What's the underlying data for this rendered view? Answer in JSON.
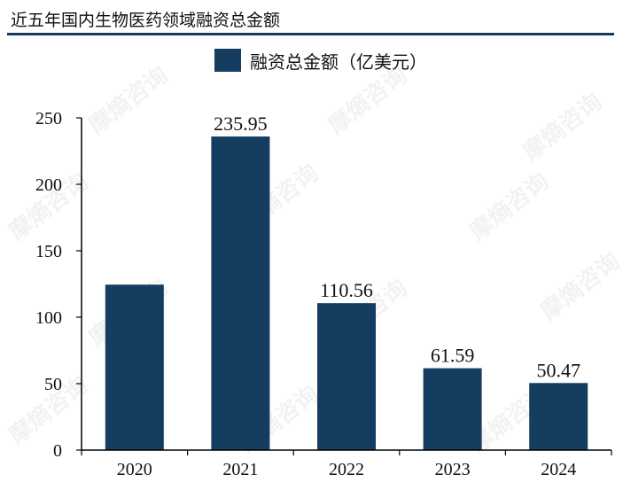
{
  "title": "近五年国内生物医药领域融资总金额",
  "watermark_text": "摩熵咨询",
  "colors": {
    "bar": "#143d5f",
    "rule": "#1b3a5c",
    "axis": "#000000",
    "text": "#111111"
  },
  "chart_data": {
    "type": "bar",
    "title": "近五年国内生物医药领域融资总金额",
    "categories": [
      "2020",
      "2021",
      "2022",
      "2023",
      "2024"
    ],
    "series": [
      {
        "name": "融资总金额（亿美元）",
        "values": [
          124.5,
          235.95,
          110.56,
          61.59,
          50.47
        ],
        "data_labels": [
          "",
          "235.95",
          "110.56",
          "61.59",
          "50.47"
        ]
      }
    ],
    "ylim": [
      0,
      250
    ],
    "yticks": [
      0,
      50,
      100,
      150,
      200,
      250
    ],
    "xlabel": "",
    "ylabel": "",
    "grid": false,
    "legend_position": "top-center"
  }
}
